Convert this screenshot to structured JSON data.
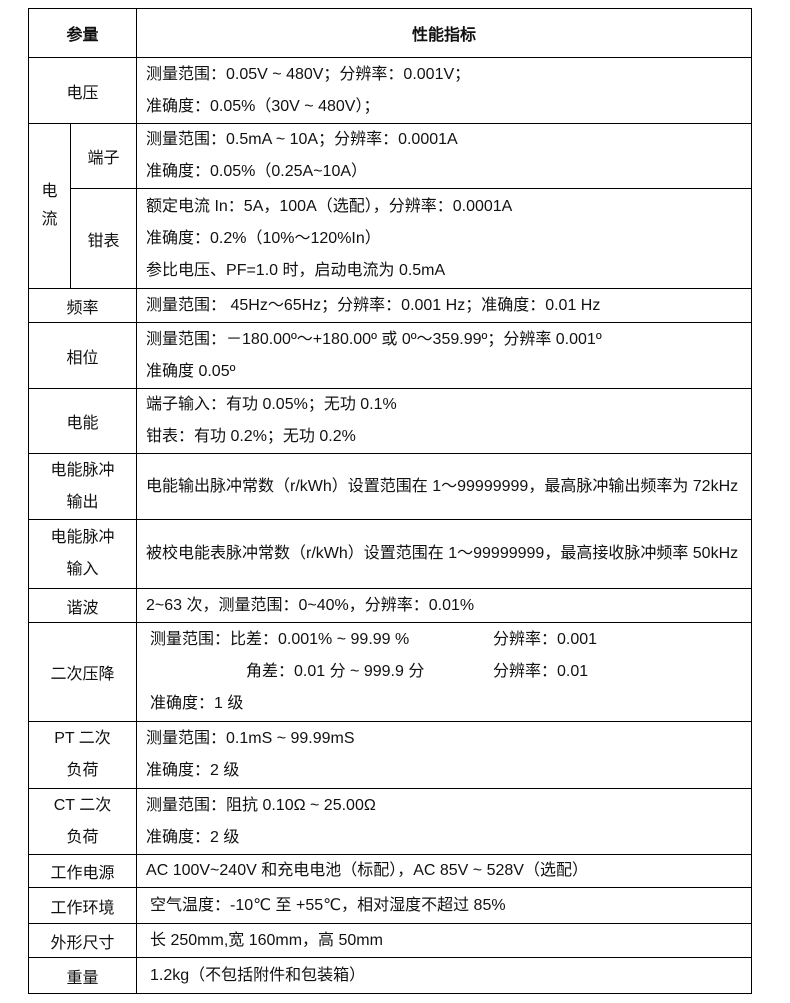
{
  "header": {
    "param": "参量",
    "spec": "性能指标"
  },
  "voltage": {
    "label": "电压",
    "lines": [
      "测量范围：0.05V ~ 480V；分辨率：0.001V；",
      "准确度：0.05%（30V ~ 480V）；"
    ]
  },
  "current": {
    "label": "电流",
    "terminal": {
      "label": "端子",
      "lines": [
        "测量范围：0.5mA ~ 10A；分辨率：0.0001A",
        "准确度：0.05%（0.25A~10A）"
      ]
    },
    "clamp": {
      "label": "钳表",
      "lines": [
        "额定电流 In：5A，100A（选配），分辨率：0.0001A",
        "准确度：0.2%（10%～120%In）",
        "参比电压、PF=1.0 时，启动电流为 0.5mA"
      ]
    }
  },
  "frequency": {
    "label": "频率",
    "lines": [
      "测量范围： 45Hz～65Hz；分辨率：0.001 Hz；准确度：0.01 Hz"
    ]
  },
  "phase": {
    "label": "相位",
    "lines": [
      "测量范围：－180.00º～+180.00º 或 0º～359.99º；分辨率 0.001º",
      "准确度 0.05º"
    ]
  },
  "energy": {
    "label": "电能",
    "lines": [
      "端子输入：有功 0.05%；无功 0.1%",
      "钳表：有功 0.2%；无功 0.2%"
    ]
  },
  "pulse_out": {
    "label_1": "电能脉冲",
    "label_2": "输出",
    "text": "电能输出脉冲常数（r/kWh）设置范围在 1～99999999，最高脉冲输出频率为 72kHz"
  },
  "pulse_in": {
    "label_1": "电能脉冲",
    "label_2": "输入",
    "text": "被校电能表脉冲常数（r/kWh）设置范围在 1～99999999，最高接收脉冲频率 50kHz"
  },
  "harmonic": {
    "label": "谐波",
    "lines": [
      "2~63 次，测量范围：0~40%，分辨率：0.01%"
    ]
  },
  "pt_drop": {
    "label": "二次压降",
    "line1_a": "测量范围：比差：0.001% ~ 99.99 %",
    "line1_b": "分辨率：0.001",
    "line2_a": "角差：0.01 分 ~ 999.9 分",
    "line2_b": "分辨率：0.01",
    "line3": "准确度：1 级"
  },
  "pt_load": {
    "label_1": "PT 二次",
    "label_2": "负荷",
    "lines": [
      "测量范围：0.1mS ~ 99.99mS",
      "准确度：2 级"
    ]
  },
  "ct_load": {
    "label_1": "CT 二次",
    "label_2": "负荷",
    "lines": [
      "测量范围：阻抗  0.10Ω  ~ 25.00Ω",
      "准确度：2 级"
    ]
  },
  "power": {
    "label": "工作电源",
    "lines": [
      "AC 100V~240V 和充电电池（标配），AC 85V ~ 528V（选配）"
    ]
  },
  "env": {
    "label": "工作环境",
    "lines": [
      "空气温度：-10℃ 至 +55℃，相对湿度不超过 85%"
    ]
  },
  "size": {
    "label": "外形尺寸",
    "lines": [
      "长 250mm,宽 160mm，高 50mm"
    ]
  },
  "weight": {
    "label": "重量",
    "lines": [
      "1.2kg（不包括附件和包装箱）"
    ]
  }
}
